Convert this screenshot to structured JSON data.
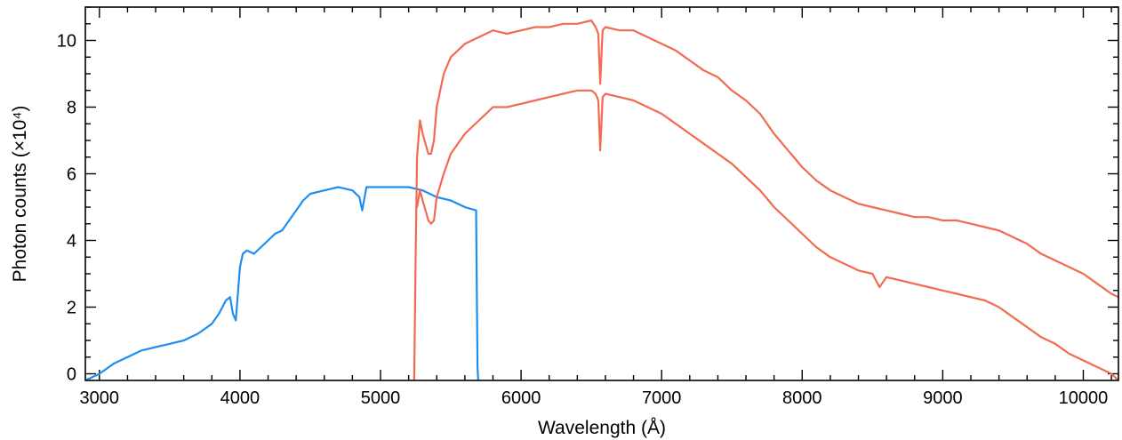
{
  "chart_data": {
    "type": "line",
    "title": "",
    "xlabel": "Wavelength (Å)",
    "ylabel": "Photon counts (×10⁴)",
    "xlim": [
      2900,
      10250
    ],
    "ylim": [
      -0.2,
      11
    ],
    "x_ticks": [
      3000,
      4000,
      5000,
      6000,
      7000,
      8000,
      9000,
      10000
    ],
    "y_ticks": [
      0,
      2,
      4,
      6,
      8,
      10
    ],
    "grid": false,
    "legend": "none",
    "colors": {
      "blue": "#1E8FEF",
      "red": "#F26B50",
      "axis": "#000000"
    },
    "series": [
      {
        "color": "blue",
        "x": [
          2900,
          3000,
          3100,
          3200,
          3300,
          3400,
          3500,
          3600,
          3700,
          3800,
          3850,
          3900,
          3930,
          3950,
          3970,
          4000,
          4020,
          4050,
          4100,
          4150,
          4200,
          4250,
          4300,
          4350,
          4400,
          4450,
          4500,
          4600,
          4700,
          4800,
          4850,
          4870,
          4900,
          5000,
          5100,
          5200,
          5300,
          5400,
          5500,
          5600,
          5680,
          5690,
          5695
        ],
        "y": [
          -0.2,
          0.0,
          0.3,
          0.5,
          0.7,
          0.8,
          0.9,
          1.0,
          1.2,
          1.5,
          1.8,
          2.2,
          2.3,
          1.8,
          1.6,
          3.2,
          3.6,
          3.7,
          3.6,
          3.8,
          4.0,
          4.2,
          4.3,
          4.6,
          4.9,
          5.2,
          5.4,
          5.5,
          5.6,
          5.5,
          5.3,
          4.9,
          5.6,
          5.6,
          5.6,
          5.6,
          5.5,
          5.3,
          5.2,
          5.0,
          4.9,
          0.2,
          -0.2
        ]
      },
      {
        "color": "red",
        "x": [
          5240,
          5250,
          5260,
          5280,
          5300,
          5320,
          5340,
          5360,
          5380,
          5400,
          5450,
          5500,
          5600,
          5700,
          5800,
          5900,
          6000,
          6100,
          6200,
          6300,
          6400,
          6500,
          6530,
          6550,
          6563,
          6580,
          6600,
          6700,
          6800,
          6900,
          7000,
          7100,
          7200,
          7300,
          7400,
          7500,
          7600,
          7700,
          7800,
          7900,
          8000,
          8100,
          8200,
          8300,
          8400,
          8500,
          8600,
          8700,
          8800,
          8900,
          9000,
          9100,
          9200,
          9300,
          9400,
          9500,
          9600,
          9700,
          9800,
          9900,
          10000,
          10100,
          10200,
          10250
        ],
        "y": [
          -0.2,
          3.5,
          6.5,
          7.6,
          7.2,
          6.9,
          6.6,
          6.6,
          7.0,
          8.0,
          9.0,
          9.5,
          9.9,
          10.1,
          10.3,
          10.2,
          10.3,
          10.4,
          10.4,
          10.5,
          10.5,
          10.6,
          10.4,
          10.2,
          8.7,
          10.3,
          10.4,
          10.3,
          10.3,
          10.1,
          9.9,
          9.7,
          9.4,
          9.1,
          8.9,
          8.5,
          8.2,
          7.8,
          7.2,
          6.7,
          6.2,
          5.8,
          5.5,
          5.3,
          5.1,
          5.0,
          4.9,
          4.8,
          4.7,
          4.7,
          4.6,
          4.6,
          4.5,
          4.4,
          4.3,
          4.1,
          3.9,
          3.6,
          3.4,
          3.2,
          3.0,
          2.7,
          2.4,
          2.3
        ]
      },
      {
        "color": "red",
        "x": [
          5260,
          5280,
          5300,
          5320,
          5340,
          5360,
          5380,
          5400,
          5450,
          5500,
          5600,
          5700,
          5800,
          5900,
          6000,
          6100,
          6200,
          6300,
          6400,
          6500,
          6530,
          6550,
          6563,
          6580,
          6600,
          6700,
          6800,
          6900,
          7000,
          7100,
          7200,
          7300,
          7400,
          7500,
          7600,
          7700,
          7800,
          7900,
          8000,
          8100,
          8200,
          8300,
          8400,
          8500,
          8550,
          8600,
          8700,
          8800,
          8900,
          9000,
          9100,
          9200,
          9300,
          9400,
          9500,
          9600,
          9700,
          9800,
          9900,
          10000,
          10100,
          10200,
          10250
        ],
        "y": [
          5.0,
          5.5,
          5.2,
          4.9,
          4.6,
          4.5,
          4.6,
          5.3,
          6.0,
          6.6,
          7.2,
          7.6,
          8.0,
          8.0,
          8.1,
          8.2,
          8.3,
          8.4,
          8.5,
          8.5,
          8.4,
          8.2,
          6.7,
          8.3,
          8.4,
          8.3,
          8.2,
          8.0,
          7.8,
          7.5,
          7.2,
          6.9,
          6.6,
          6.3,
          5.9,
          5.5,
          5.0,
          4.6,
          4.2,
          3.8,
          3.5,
          3.3,
          3.1,
          3.0,
          2.6,
          2.9,
          2.8,
          2.7,
          2.6,
          2.5,
          2.4,
          2.3,
          2.2,
          2.0,
          1.7,
          1.4,
          1.1,
          0.9,
          0.6,
          0.4,
          0.2,
          0.0,
          -0.2
        ]
      }
    ]
  }
}
